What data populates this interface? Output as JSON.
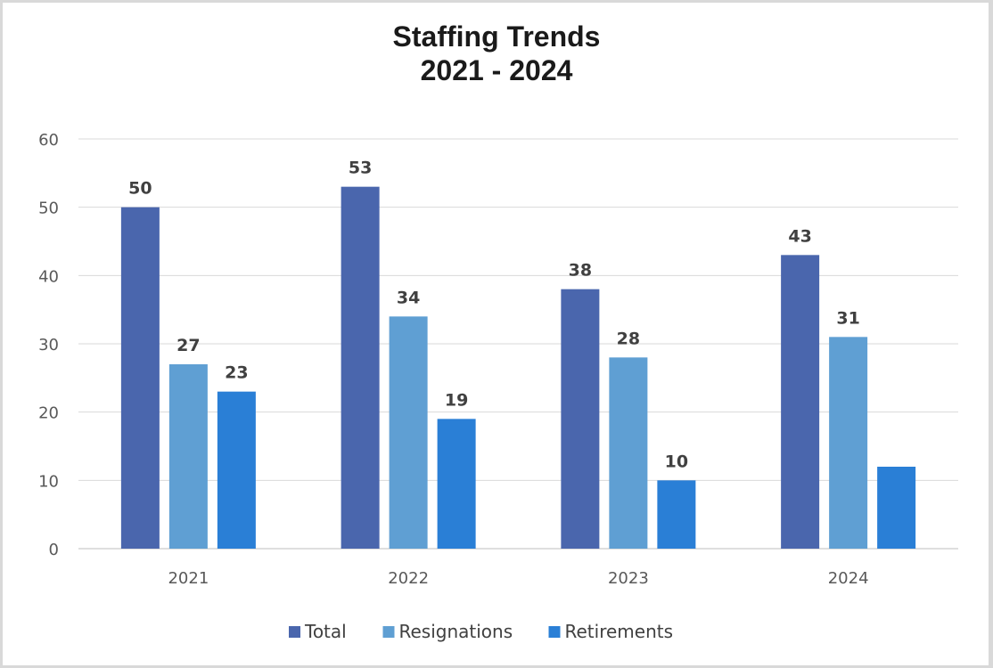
{
  "chart_data": {
    "type": "bar",
    "title": [
      "Staffing Trends",
      "2021 - 2024"
    ],
    "categories": [
      "2021",
      "2022",
      "2023",
      "2024"
    ],
    "series": [
      {
        "name": "Total",
        "values": [
          50,
          53,
          38,
          43
        ],
        "color": "#4a66ad",
        "labels": [
          "50",
          "53",
          "38",
          "43"
        ]
      },
      {
        "name": "Resignations",
        "values": [
          27,
          34,
          28,
          31
        ],
        "color": "#5f9fd3",
        "labels": [
          "27",
          "34",
          "28",
          "31"
        ]
      },
      {
        "name": "Retirements",
        "values": [
          23,
          19,
          10,
          12
        ],
        "color": "#2a7fd6",
        "labels": [
          "23",
          "19",
          "10",
          null
        ]
      }
    ],
    "ylim": [
      0,
      60
    ],
    "yticks": [
      0,
      10,
      20,
      30,
      40,
      50,
      60
    ],
    "grid": true,
    "legend_position": "bottom"
  }
}
